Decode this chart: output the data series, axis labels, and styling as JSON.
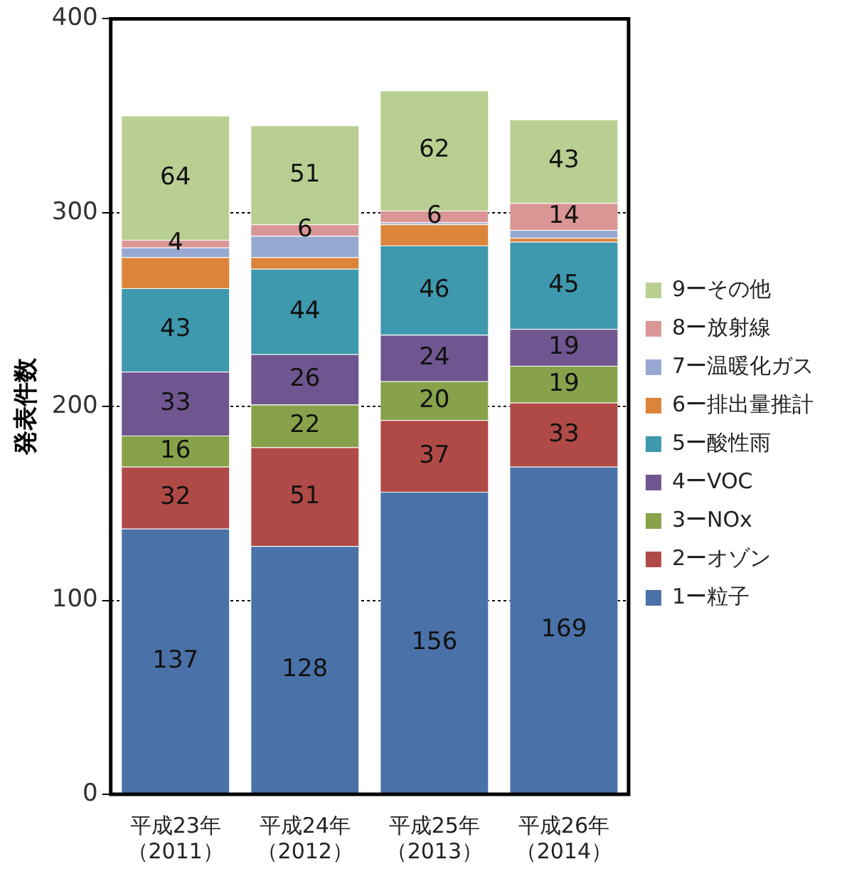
{
  "chart_data": {
    "type": "bar",
    "stacked": true,
    "ylabel": "発表件数",
    "categories": [
      "平成23年（2011）",
      "平成24年（2012）",
      "平成25年（2013）",
      "平成26年（2014）"
    ],
    "ylim": [
      0,
      400
    ],
    "yticks": [
      0,
      100,
      200,
      300,
      400
    ],
    "grid": "y",
    "legend": "right",
    "series": [
      {
        "name": "1ー粒子",
        "color": "#4a72a8",
        "values": [
          137,
          128,
          156,
          169
        ],
        "value_labels": [
          "137",
          "128",
          "156",
          "169"
        ]
      },
      {
        "name": "2ーオゾン",
        "color": "#b04a46",
        "values": [
          32,
          51,
          37,
          33
        ],
        "value_labels": [
          "32",
          "51",
          "37",
          "33"
        ]
      },
      {
        "name": "3ーNOx",
        "color": "#87a24a",
        "values": [
          16,
          22,
          20,
          19
        ],
        "value_labels": [
          "16",
          "22",
          "20",
          "19"
        ]
      },
      {
        "name": "4ーVOC",
        "color": "#6f5690",
        "values": [
          33,
          26,
          24,
          19
        ],
        "value_labels": [
          "33",
          "26",
          "24",
          "19"
        ]
      },
      {
        "name": "5ー酸性雨",
        "color": "#3e98ae",
        "values": [
          43,
          44,
          46,
          45
        ],
        "value_labels": [
          "43",
          "44",
          "46",
          "45"
        ]
      },
      {
        "name": "6ー排出量推計",
        "color": "#dc8439",
        "values": [
          16,
          6,
          11,
          2
        ],
        "value_labels": [
          null,
          null,
          null,
          null
        ]
      },
      {
        "name": "7ー温暖化ガス",
        "color": "#97a9d2",
        "values": [
          5,
          11,
          1,
          4
        ],
        "value_labels": [
          null,
          null,
          null,
          null
        ]
      },
      {
        "name": "8ー放射線",
        "color": "#d99694",
        "values": [
          4,
          6,
          6,
          14
        ],
        "value_labels": [
          "4",
          "6",
          "6",
          "14"
        ]
      },
      {
        "name": "9ーその他",
        "color": "#b9cf92",
        "values": [
          64,
          51,
          62,
          43
        ],
        "value_labels": [
          "64",
          "51",
          "62",
          "43"
        ]
      }
    ]
  }
}
